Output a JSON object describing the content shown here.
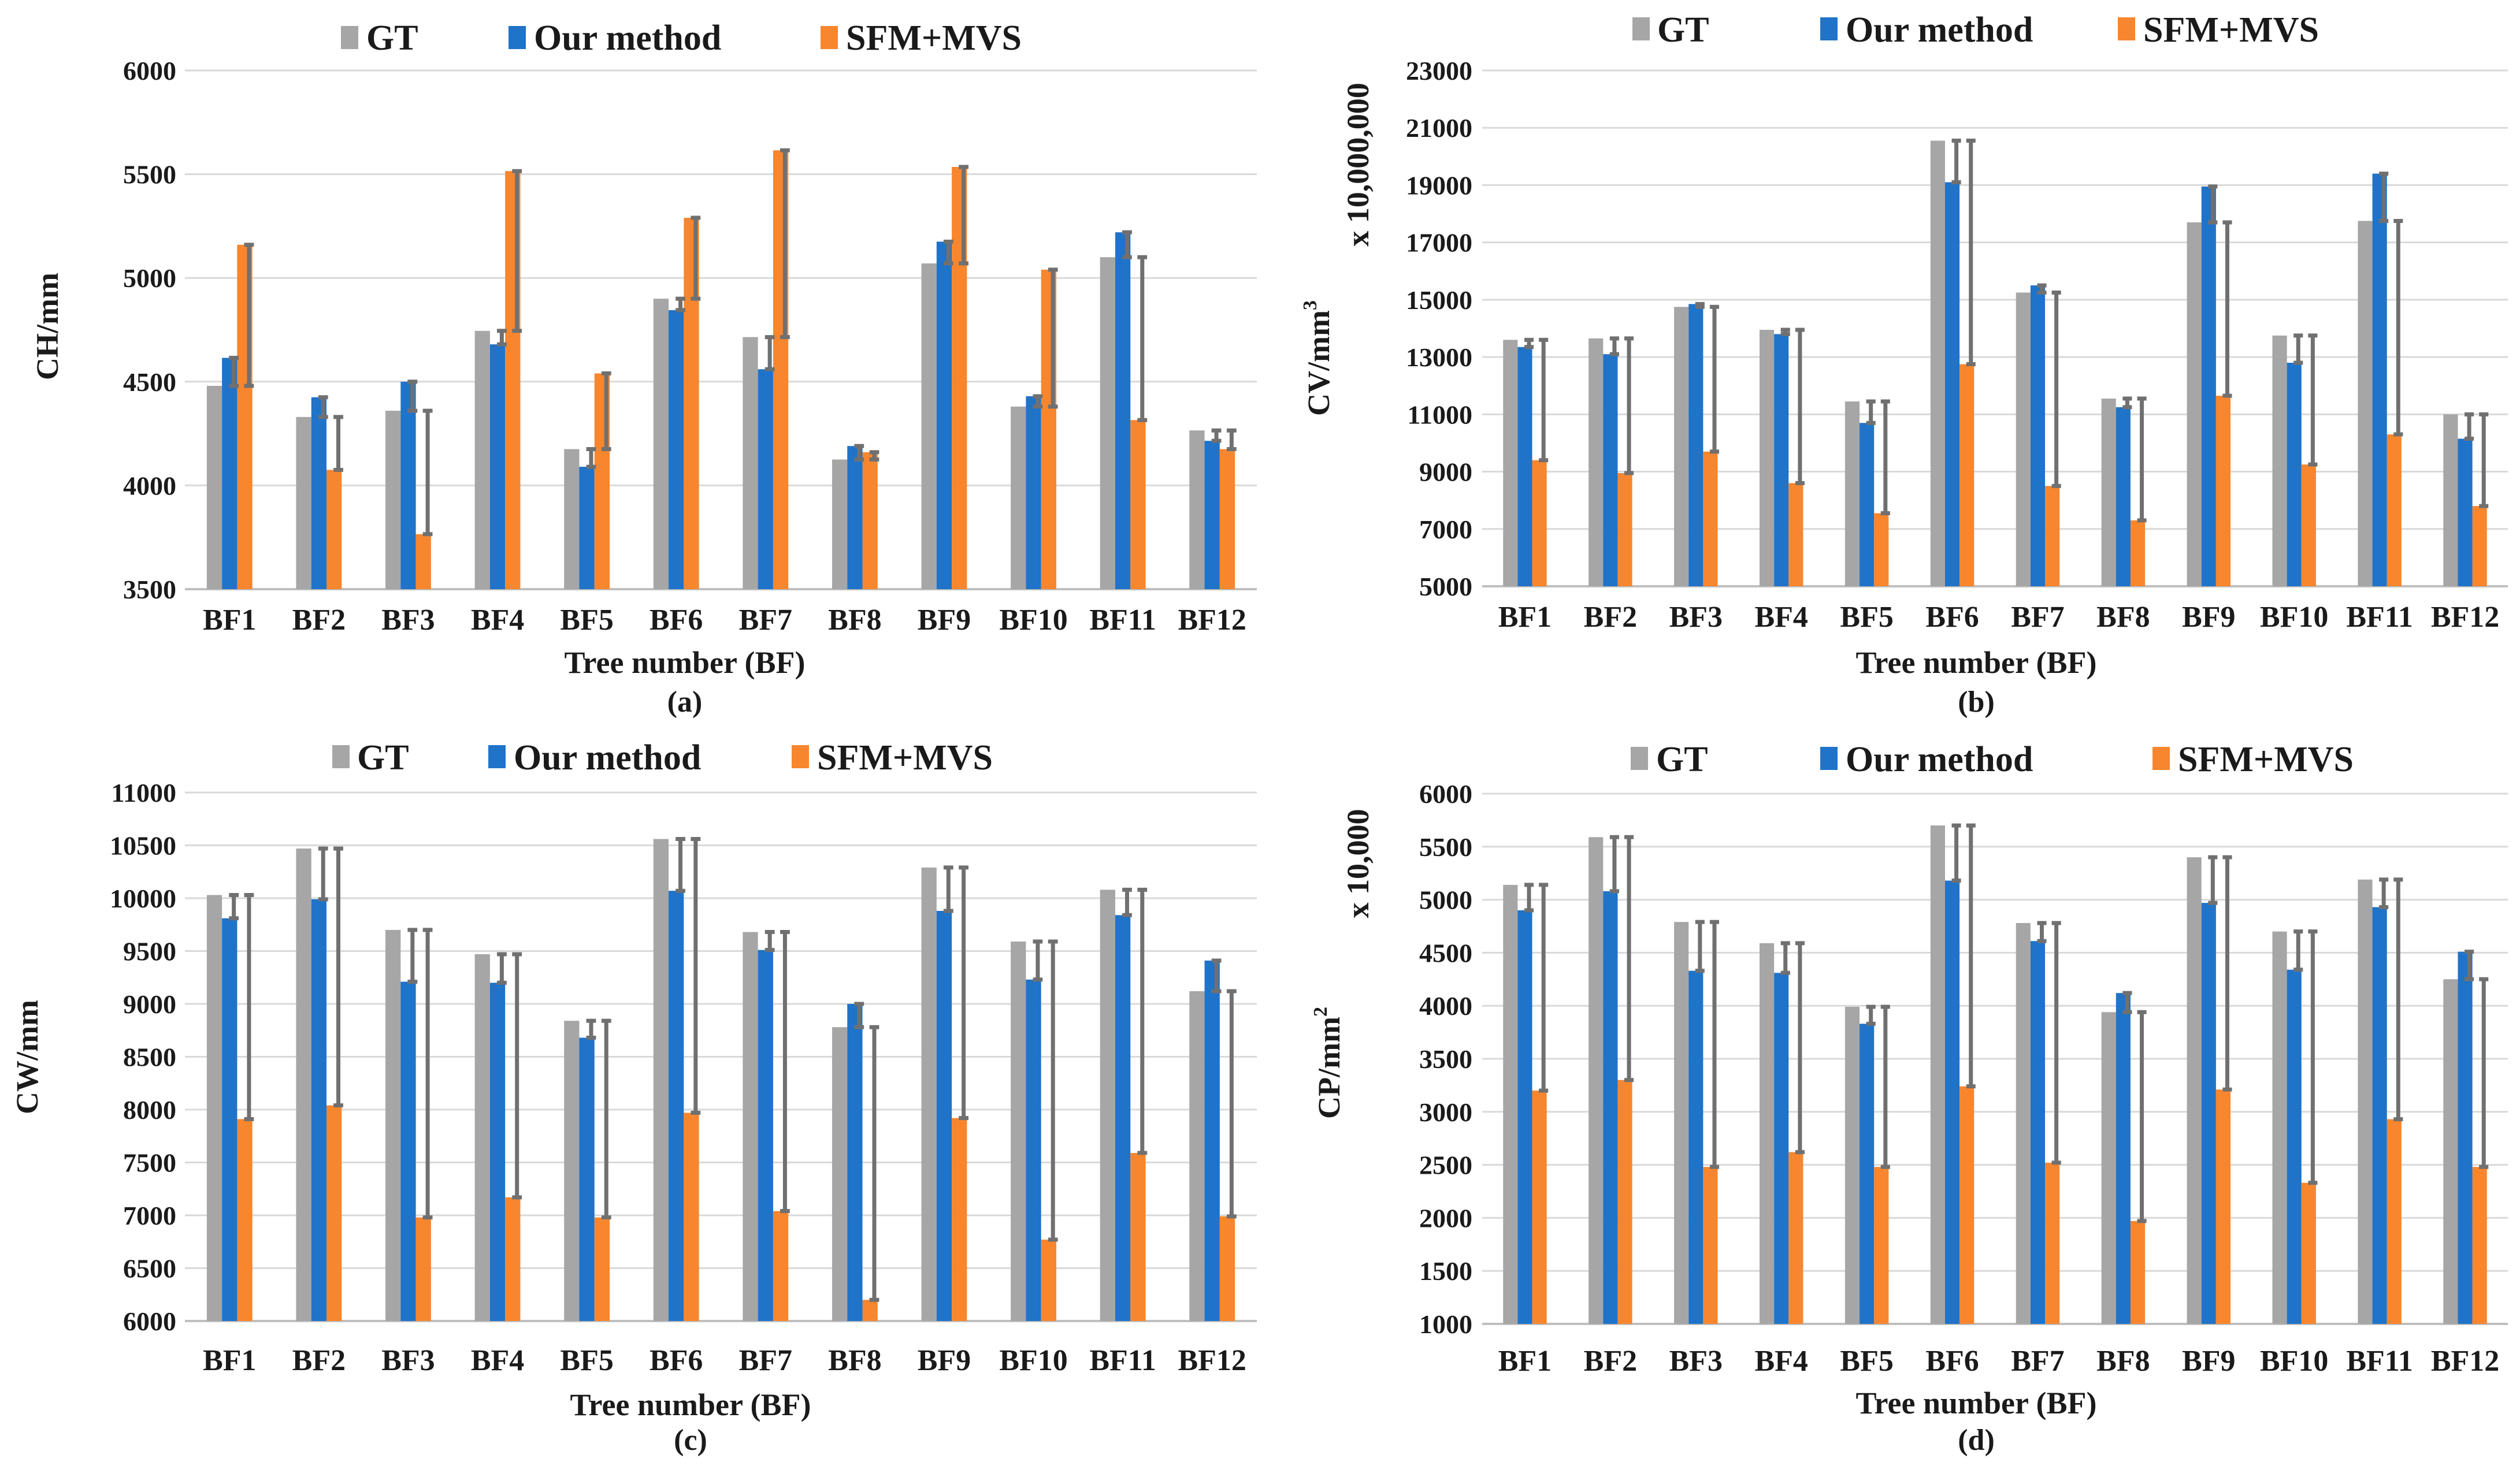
{
  "colors": {
    "gt": "#a6a6a6",
    "ours": "#1f73c9",
    "sfm": "#f7862e",
    "error": "#707070"
  },
  "legend": {
    "gt": "GT",
    "ours": "Our method",
    "sfm": "SFM+MVS"
  },
  "chart_data": [
    {
      "type": "bar",
      "panel_label": "(a)",
      "xlabel": "Tree number (BF)",
      "ylabel": "CH/mm",
      "ylabel_sup": "",
      "ylabel_extra": "",
      "ylim": [
        3500,
        6000
      ],
      "ytick_step": 500,
      "categories": [
        "BF1",
        "BF2",
        "BF3",
        "BF4",
        "BF5",
        "BF6",
        "BF7",
        "BF8",
        "BF9",
        "BF10",
        "BF11",
        "BF12"
      ],
      "series": [
        {
          "name": "GT",
          "values": [
            4480,
            4330,
            4360,
            4745,
            4175,
            4900,
            4715,
            4125,
            5070,
            4380,
            5100,
            4265
          ]
        },
        {
          "name": "Our method",
          "values": [
            4615,
            4425,
            4500,
            4680,
            4090,
            4845,
            4560,
            4190,
            5175,
            4430,
            5220,
            4215
          ]
        },
        {
          "name": "SFM+MVS",
          "values": [
            5160,
            4075,
            3765,
            5515,
            4540,
            5290,
            5615,
            4160,
            5535,
            5040,
            4315,
            4175
          ]
        }
      ],
      "error_bars": [
        {
          "series": "Our method",
          "low": [
            4480,
            4330,
            4360,
            4680,
            4090,
            4845,
            4560,
            4125,
            5070,
            4380,
            5100,
            4215
          ],
          "high": [
            4615,
            4425,
            4500,
            4745,
            4175,
            4900,
            4715,
            4190,
            5175,
            4430,
            5220,
            4265
          ]
        },
        {
          "series": "SFM+MVS",
          "low": [
            4480,
            4075,
            3765,
            4745,
            4175,
            4900,
            4715,
            4125,
            5070,
            4380,
            4315,
            4175
          ],
          "high": [
            5160,
            4330,
            4360,
            5515,
            4540,
            5290,
            5615,
            4160,
            5535,
            5040,
            5100,
            4265
          ]
        }
      ]
    },
    {
      "type": "bar",
      "panel_label": "(b)",
      "xlabel": "Tree number (BF)",
      "ylabel": "CV/mm",
      "ylabel_sup": "3",
      "ylabel_extra": "x 10,000,000",
      "ylim": [
        5000,
        23000
      ],
      "ytick_step": 2000,
      "categories": [
        "BF1",
        "BF2",
        "BF3",
        "BF4",
        "BF5",
        "BF6",
        "BF7",
        "BF8",
        "BF9",
        "BF10",
        "BF11",
        "BF12"
      ],
      "series": [
        {
          "name": "GT",
          "values": [
            13600,
            13650,
            14750,
            13950,
            11450,
            20550,
            15250,
            11550,
            17700,
            13750,
            17750,
            11000
          ]
        },
        {
          "name": "Our method",
          "values": [
            13350,
            13100,
            14850,
            13800,
            10700,
            19100,
            15500,
            11250,
            18950,
            12800,
            19400,
            10150
          ]
        },
        {
          "name": "SFM+MVS",
          "values": [
            9400,
            8950,
            9700,
            8600,
            7550,
            12750,
            8500,
            7300,
            11650,
            9250,
            10300,
            7800
          ]
        }
      ],
      "error_bars": [
        {
          "series": "Our method",
          "low": [
            13350,
            13100,
            14750,
            13800,
            10700,
            19100,
            15250,
            11250,
            17700,
            12800,
            17750,
            10150
          ],
          "high": [
            13600,
            13650,
            14850,
            13950,
            11450,
            20550,
            15500,
            11550,
            18950,
            13750,
            19400,
            11000
          ]
        },
        {
          "series": "SFM+MVS",
          "low": [
            9400,
            8950,
            9700,
            8600,
            7550,
            12750,
            8500,
            7300,
            11650,
            9250,
            10300,
            7800
          ],
          "high": [
            13600,
            13650,
            14750,
            13950,
            11450,
            20550,
            15250,
            11550,
            17700,
            13750,
            17750,
            11000
          ]
        }
      ]
    },
    {
      "type": "bar",
      "panel_label": "(c)",
      "xlabel": "Tree number (BF)",
      "ylabel": "CW/mm",
      "ylabel_sup": "",
      "ylabel_extra": "",
      "ylim": [
        6000,
        11000
      ],
      "ytick_step": 500,
      "categories": [
        "BF1",
        "BF2",
        "BF3",
        "BF4",
        "BF5",
        "BF6",
        "BF7",
        "BF8",
        "BF9",
        "BF10",
        "BF11",
        "BF12"
      ],
      "series": [
        {
          "name": "GT",
          "values": [
            10030,
            10470,
            9700,
            9470,
            8840,
            10560,
            9680,
            8780,
            10290,
            9590,
            10080,
            9120
          ]
        },
        {
          "name": "Our method",
          "values": [
            9810,
            9990,
            9210,
            9200,
            8680,
            10070,
            9510,
            9000,
            9880,
            9230,
            9840,
            9410
          ]
        },
        {
          "name": "SFM+MVS",
          "values": [
            7910,
            8040,
            6980,
            7170,
            6980,
            7970,
            7040,
            6200,
            7920,
            6770,
            7590,
            6990
          ]
        }
      ],
      "error_bars": [
        {
          "series": "Our method",
          "low": [
            9810,
            9990,
            9210,
            9200,
            8680,
            10070,
            9510,
            8780,
            9880,
            9230,
            9840,
            9120
          ],
          "high": [
            10030,
            10470,
            9700,
            9470,
            8840,
            10560,
            9680,
            9000,
            10290,
            9590,
            10080,
            9410
          ]
        },
        {
          "series": "SFM+MVS",
          "low": [
            7910,
            8040,
            6980,
            7170,
            6980,
            7970,
            7040,
            6200,
            7920,
            6770,
            7590,
            6990
          ],
          "high": [
            10030,
            10470,
            9700,
            9470,
            8840,
            10560,
            9680,
            8780,
            10290,
            9590,
            10080,
            9120
          ]
        }
      ]
    },
    {
      "type": "bar",
      "panel_label": "(d)",
      "xlabel": "Tree number (BF)",
      "ylabel": "CP/mm",
      "ylabel_sup": "2",
      "ylabel_extra": "x 10,000",
      "ylim": [
        1000,
        6000
      ],
      "ytick_step": 500,
      "categories": [
        "BF1",
        "BF2",
        "BF3",
        "BF4",
        "BF5",
        "BF6",
        "BF7",
        "BF8",
        "BF9",
        "BF10",
        "BF11",
        "BF12"
      ],
      "series": [
        {
          "name": "GT",
          "values": [
            5140,
            5590,
            4790,
            4590,
            3990,
            5700,
            4780,
            3940,
            5400,
            4700,
            5190,
            4250
          ]
        },
        {
          "name": "Our method",
          "values": [
            4900,
            5080,
            4330,
            4310,
            3830,
            5180,
            4610,
            4120,
            4970,
            4340,
            4930,
            4510
          ]
        },
        {
          "name": "SFM+MVS",
          "values": [
            3200,
            3300,
            2480,
            2620,
            2480,
            3240,
            2520,
            1970,
            3210,
            2330,
            2930,
            2480
          ]
        }
      ],
      "error_bars": [
        {
          "series": "Our method",
          "low": [
            4900,
            5080,
            4330,
            4310,
            3830,
            5180,
            4610,
            3940,
            4970,
            4340,
            4930,
            4250
          ],
          "high": [
            5140,
            5590,
            4790,
            4590,
            3990,
            5700,
            4780,
            4120,
            5400,
            4700,
            5190,
            4510
          ]
        },
        {
          "series": "SFM+MVS",
          "low": [
            3200,
            3300,
            2480,
            2620,
            2480,
            3240,
            2520,
            1970,
            3210,
            2330,
            2930,
            2480
          ],
          "high": [
            5140,
            5590,
            4790,
            4590,
            3990,
            5700,
            4780,
            3940,
            5400,
            4700,
            5190,
            4250
          ]
        }
      ]
    }
  ]
}
